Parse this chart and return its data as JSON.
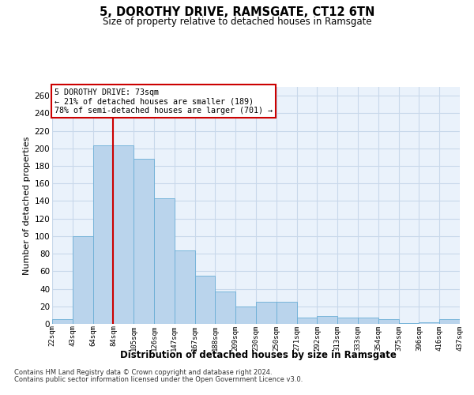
{
  "title_line1": "5, DOROTHY DRIVE, RAMSGATE, CT12 6TN",
  "title_line2": "Size of property relative to detached houses in Ramsgate",
  "xlabel": "Distribution of detached houses by size in Ramsgate",
  "ylabel": "Number of detached properties",
  "bar_values": [
    5,
    100,
    203,
    203,
    188,
    143,
    84,
    55,
    37,
    20,
    25,
    25,
    7,
    9,
    7,
    7,
    5,
    1,
    2,
    5
  ],
  "xtick_labels": [
    "22sqm",
    "43sqm",
    "64sqm",
    "84sqm",
    "105sqm",
    "126sqm",
    "147sqm",
    "167sqm",
    "188sqm",
    "209sqm",
    "230sqm",
    "250sqm",
    "271sqm",
    "292sqm",
    "313sqm",
    "333sqm",
    "354sqm",
    "375sqm",
    "396sqm",
    "416sqm",
    "437sqm"
  ],
  "bar_color": "#bad4ec",
  "bar_edge_color": "#6aaed6",
  "grid_color": "#c8d8ea",
  "bg_color": "#eaf2fb",
  "vline_color": "#cc0000",
  "vline_x_bar_index": 2,
  "ylim": [
    0,
    270
  ],
  "yticks": [
    0,
    20,
    40,
    60,
    80,
    100,
    120,
    140,
    160,
    180,
    200,
    220,
    240,
    260
  ],
  "annotation_title": "5 DOROTHY DRIVE: 73sqm",
  "annotation_line2": "← 21% of detached houses are smaller (189)",
  "annotation_line3": "78% of semi-detached houses are larger (701) →",
  "footer_line1": "Contains HM Land Registry data © Crown copyright and database right 2024.",
  "footer_line2": "Contains public sector information licensed under the Open Government Licence v3.0.",
  "figwidth": 6.0,
  "figheight": 5.0,
  "dpi": 100
}
